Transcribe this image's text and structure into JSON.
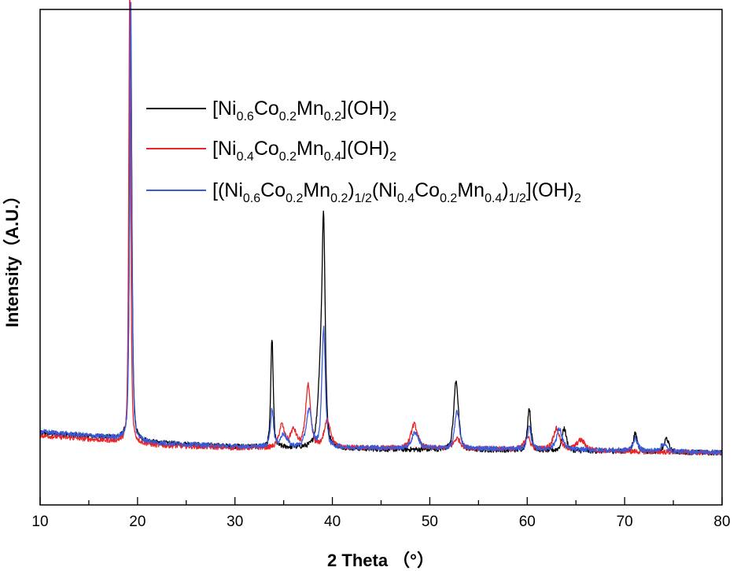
{
  "chart_data": {
    "type": "line",
    "xlabel": "2 Theta （°）",
    "ylabel": "Intensity（A.U.）",
    "xlim": [
      10,
      80
    ],
    "ylim": [
      0,
      100
    ],
    "x_ticks": [
      10,
      20,
      30,
      40,
      50,
      60,
      70,
      80
    ],
    "y_ticks_labeled": false,
    "grid": false,
    "legend_position": "top-center",
    "series": [
      {
        "name": "[Ni0.6Co0.2Mn0.2](OH)2",
        "legend_parts": [
          [
            "[Ni",
            ""
          ],
          [
            "0.6",
            "sub"
          ],
          [
            "Co",
            ""
          ],
          [
            "0.2",
            "sub"
          ],
          [
            "Mn",
            ""
          ],
          [
            "0.2",
            "sub"
          ],
          [
            "](OH)",
            ""
          ],
          [
            "2",
            "sub"
          ]
        ],
        "color": "#000000",
        "baseline": [
          [
            10,
            14.5
          ],
          [
            18,
            13.5
          ],
          [
            22,
            12.5
          ],
          [
            30,
            11.8
          ],
          [
            45,
            11.2
          ],
          [
            60,
            11.0
          ],
          [
            70,
            10.8
          ],
          [
            80,
            10.5
          ]
        ],
        "peaks": [
          {
            "center": 19.3,
            "height": 83,
            "width": 0.22
          },
          {
            "center": 33.8,
            "height": 22,
            "width": 0.22
          },
          {
            "center": 38.8,
            "height": 14,
            "width": 0.5
          },
          {
            "center": 39.1,
            "height": 40,
            "width": 0.28
          },
          {
            "center": 52.7,
            "height": 14,
            "width": 0.42
          },
          {
            "center": 60.2,
            "height": 8.5,
            "width": 0.32
          },
          {
            "center": 63.8,
            "height": 4.5,
            "width": 0.4
          },
          {
            "center": 71.1,
            "height": 3.6,
            "width": 0.38
          },
          {
            "center": 74.3,
            "height": 2.8,
            "width": 0.4
          }
        ]
      },
      {
        "name": "[Ni0.4Co0.2Mn0.4](OH)2",
        "legend_parts": [
          [
            "[Ni",
            ""
          ],
          [
            "0.4",
            "sub"
          ],
          [
            "Co",
            ""
          ],
          [
            "0.2",
            "sub"
          ],
          [
            "Mn",
            ""
          ],
          [
            "0.4",
            "sub"
          ],
          [
            "](OH)",
            ""
          ],
          [
            "2",
            "sub"
          ]
        ],
        "color": "#e8262a",
        "baseline": [
          [
            10,
            14.0
          ],
          [
            18,
            12.8
          ],
          [
            22,
            12.0
          ],
          [
            30,
            11.5
          ],
          [
            45,
            11.5
          ],
          [
            60,
            11.3
          ],
          [
            70,
            10.8
          ],
          [
            80,
            10.5
          ]
        ],
        "peaks": [
          {
            "center": 19.2,
            "height": 93,
            "width": 0.18
          },
          {
            "center": 34.8,
            "height": 4.5,
            "width": 0.5
          },
          {
            "center": 36.0,
            "height": 3.5,
            "width": 0.6
          },
          {
            "center": 37.5,
            "height": 12.5,
            "width": 0.45
          },
          {
            "center": 39.5,
            "height": 5.5,
            "width": 0.6
          },
          {
            "center": 48.4,
            "height": 4.8,
            "width": 0.6
          },
          {
            "center": 52.8,
            "height": 2.0,
            "width": 0.6
          },
          {
            "center": 60.0,
            "height": 2.5,
            "width": 0.5
          },
          {
            "center": 63.0,
            "height": 4.2,
            "width": 0.6
          },
          {
            "center": 65.5,
            "height": 2.0,
            "width": 0.8
          }
        ]
      },
      {
        "name": "[(Ni0.6Co0.2Mn0.2)1/2(Ni0.4Co0.2Mn0.4)1/2](OH)2",
        "legend_parts": [
          [
            "[(Ni",
            ""
          ],
          [
            "0.6",
            "sub"
          ],
          [
            "Co",
            ""
          ],
          [
            "0.2",
            "sub"
          ],
          [
            "Mn",
            ""
          ],
          [
            "0.2",
            "sub"
          ],
          [
            ")",
            ""
          ],
          [
            "1/2",
            "sub"
          ],
          [
            "(Ni",
            ""
          ],
          [
            "0.4",
            "sub"
          ],
          [
            "Co",
            ""
          ],
          [
            "0.2",
            "sub"
          ],
          [
            "Mn",
            ""
          ],
          [
            "0.4",
            "sub"
          ],
          [
            ")",
            ""
          ],
          [
            "1/2",
            "sub"
          ],
          [
            "](OH)",
            ""
          ],
          [
            "2",
            "sub"
          ]
        ],
        "color": "#3a5bd9",
        "baseline": [
          [
            10,
            14.8
          ],
          [
            18,
            13.5
          ],
          [
            22,
            12.5
          ],
          [
            30,
            11.8
          ],
          [
            45,
            11.5
          ],
          [
            60,
            11.3
          ],
          [
            70,
            11.0
          ],
          [
            80,
            10.6
          ]
        ],
        "peaks": [
          {
            "center": 19.3,
            "height": 90,
            "width": 0.2
          },
          {
            "center": 33.8,
            "height": 7.5,
            "width": 0.28
          },
          {
            "center": 35.0,
            "height": 2.5,
            "width": 0.6
          },
          {
            "center": 37.6,
            "height": 7.5,
            "width": 0.5
          },
          {
            "center": 39.1,
            "height": 24,
            "width": 0.32
          },
          {
            "center": 48.5,
            "height": 3.2,
            "width": 0.6
          },
          {
            "center": 52.8,
            "height": 7.5,
            "width": 0.42
          },
          {
            "center": 60.2,
            "height": 4.5,
            "width": 0.35
          },
          {
            "center": 63.3,
            "height": 4.0,
            "width": 0.55
          },
          {
            "center": 71.1,
            "height": 2.4,
            "width": 0.45
          },
          {
            "center": 74.0,
            "height": 1.5,
            "width": 0.5
          }
        ]
      }
    ]
  }
}
